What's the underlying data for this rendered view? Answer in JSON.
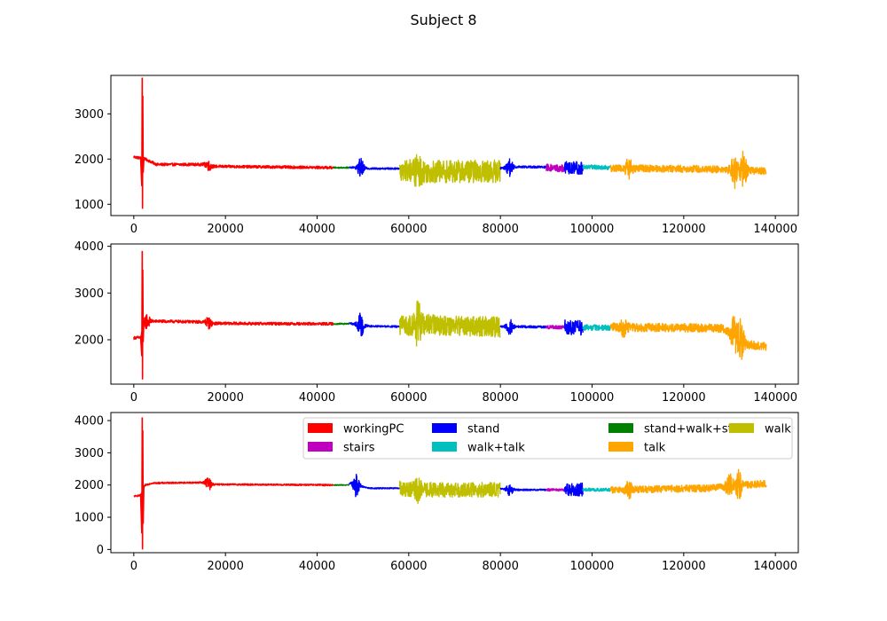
{
  "figure": {
    "title": "Subject 8"
  },
  "colors": {
    "workingPC": "#ff0000",
    "stand": "#0000ff",
    "stand+walk+stairs": "#008000",
    "walk": "#bfbf00",
    "stairs": "#bf00bf",
    "walk+talk": "#00bfbf",
    "talk": "#ffa500"
  },
  "chart_data": [
    {
      "type": "line",
      "xlim": [
        -5000,
        145000
      ],
      "ylim": [
        750,
        3850
      ],
      "xticks": [
        0,
        20000,
        40000,
        60000,
        80000,
        100000,
        120000,
        140000
      ],
      "xtick_labels": [
        "0",
        "20000",
        "40000",
        "60000",
        "80000",
        "100000",
        "120000",
        "140000"
      ],
      "yticks": [
        1000,
        2000,
        3000
      ],
      "ytick_labels": [
        "1000",
        "2000",
        "3000"
      ],
      "grid": false,
      "spike": {
        "x": 1900,
        "max": 3800,
        "min": 900
      },
      "segments": [
        {
          "label": "workingPC",
          "x": [
            0,
            43500
          ],
          "levels": [
            [
              0,
              2050
            ],
            [
              2500,
              2000
            ],
            [
              3500,
              1950
            ],
            [
              5000,
              1880
            ],
            [
              16000,
              1880
            ],
            [
              16500,
              1840
            ],
            [
              43500,
              1810
            ]
          ],
          "amp": 30,
          "bursts": [
            {
              "x": 16300,
              "amp": 90
            }
          ]
        },
        {
          "label": "stand+walk+stairs",
          "x": [
            43500,
            47000
          ],
          "levels": [
            [
              43500,
              1810
            ],
            [
              47000,
              1810
            ]
          ],
          "amp": 15,
          "bursts": []
        },
        {
          "label": "stand",
          "x": [
            47000,
            58000
          ],
          "levels": [
            [
              47000,
              1820
            ],
            [
              51500,
              1790
            ],
            [
              58000,
              1790
            ]
          ],
          "amp": 20,
          "bursts": [
            {
              "x": 49500,
              "amp": 200
            }
          ]
        },
        {
          "label": "walk",
          "x": [
            58000,
            80000
          ],
          "levels": [
            [
              58000,
              1780
            ],
            [
              62000,
              1720
            ],
            [
              80000,
              1730
            ]
          ],
          "amp": 250,
          "bursts": [
            {
              "x": 62000,
              "amp": 200
            }
          ]
        },
        {
          "label": "stand",
          "x": [
            80000,
            90000
          ],
          "levels": [
            [
              80000,
              1800
            ],
            [
              84000,
              1830
            ],
            [
              90000,
              1820
            ]
          ],
          "amp": 25,
          "bursts": [
            {
              "x": 82000,
              "amp": 180
            }
          ]
        },
        {
          "label": "stairs",
          "x": [
            90000,
            94000
          ],
          "levels": [
            [
              90000,
              1810
            ],
            [
              94000,
              1790
            ]
          ],
          "amp": 80,
          "bursts": []
        },
        {
          "label": "stand",
          "x": [
            94000,
            98000
          ],
          "levels": [
            [
              94000,
              1800
            ],
            [
              98000,
              1800
            ]
          ],
          "amp": 150,
          "bursts": []
        },
        {
          "label": "walk+talk",
          "x": [
            98000,
            104000
          ],
          "levels": [
            [
              98000,
              1830
            ],
            [
              104000,
              1810
            ]
          ],
          "amp": 50,
          "bursts": []
        },
        {
          "label": "talk",
          "x": [
            104000,
            138000
          ],
          "levels": [
            [
              104000,
              1800
            ],
            [
              125000,
              1780
            ],
            [
              138000,
              1730
            ]
          ],
          "amp": 80,
          "bursts": [
            {
              "x": 108000,
              "amp": 200
            },
            {
              "x": 131000,
              "amp": 350
            },
            {
              "x": 133000,
              "amp": 400
            }
          ]
        }
      ]
    },
    {
      "type": "line",
      "xlim": [
        -5000,
        145000
      ],
      "ylim": [
        1050,
        4050
      ],
      "xticks": [
        0,
        20000,
        40000,
        60000,
        80000,
        100000,
        120000,
        140000
      ],
      "xtick_labels": [
        "0",
        "20000",
        "40000",
        "60000",
        "80000",
        "100000",
        "120000",
        "140000"
      ],
      "yticks": [
        2000,
        3000,
        4000
      ],
      "ytick_labels": [
        "2000",
        "3000",
        "4000"
      ],
      "grid": false,
      "spike": {
        "x": 1900,
        "max": 3900,
        "min": 1150
      },
      "segments": [
        {
          "label": "workingPC",
          "x": [
            0,
            43500
          ],
          "levels": [
            [
              0,
              2040
            ],
            [
              1500,
              2050
            ],
            [
              2500,
              2400
            ],
            [
              16000,
              2380
            ],
            [
              16500,
              2350
            ],
            [
              43500,
              2340
            ]
          ],
          "amp": 30,
          "bursts": [
            {
              "x": 2800,
              "amp": 150
            },
            {
              "x": 16300,
              "amp": 100
            }
          ]
        },
        {
          "label": "stand+walk+stairs",
          "x": [
            43500,
            47000
          ],
          "levels": [
            [
              43500,
              2340
            ],
            [
              47000,
              2340
            ]
          ],
          "amp": 15,
          "bursts": []
        },
        {
          "label": "stand",
          "x": [
            47000,
            58000
          ],
          "levels": [
            [
              47000,
              2350
            ],
            [
              51500,
              2290
            ],
            [
              58000,
              2280
            ]
          ],
          "amp": 20,
          "bursts": [
            {
              "x": 49500,
              "amp": 250
            }
          ]
        },
        {
          "label": "walk",
          "x": [
            58000,
            80000
          ],
          "levels": [
            [
              58000,
              2290
            ],
            [
              62000,
              2330
            ],
            [
              80000,
              2270
            ]
          ],
          "amp": 220,
          "bursts": [
            {
              "x": 62000,
              "amp": 300
            }
          ]
        },
        {
          "label": "stand",
          "x": [
            80000,
            90000
          ],
          "levels": [
            [
              80000,
              2280
            ],
            [
              84000,
              2280
            ],
            [
              90000,
              2270
            ]
          ],
          "amp": 25,
          "bursts": [
            {
              "x": 82000,
              "amp": 170
            }
          ]
        },
        {
          "label": "stairs",
          "x": [
            90000,
            94000
          ],
          "levels": [
            [
              90000,
              2270
            ],
            [
              94000,
              2270
            ]
          ],
          "amp": 40,
          "bursts": []
        },
        {
          "label": "stand",
          "x": [
            94000,
            98000
          ],
          "levels": [
            [
              94000,
              2270
            ],
            [
              98000,
              2250
            ]
          ],
          "amp": 160,
          "bursts": []
        },
        {
          "label": "walk+talk",
          "x": [
            98000,
            104000
          ],
          "levels": [
            [
              98000,
              2260
            ],
            [
              104000,
              2260
            ]
          ],
          "amp": 60,
          "bursts": []
        },
        {
          "label": "talk",
          "x": [
            104000,
            138000
          ],
          "levels": [
            [
              104000,
              2270
            ],
            [
              128000,
              2250
            ],
            [
              132000,
              2050
            ],
            [
              134000,
              1900
            ],
            [
              138000,
              1850
            ]
          ],
          "amp": 90,
          "bursts": [
            {
              "x": 107000,
              "amp": 160
            },
            {
              "x": 131000,
              "amp": 350
            },
            {
              "x": 132500,
              "amp": 400
            }
          ]
        }
      ]
    },
    {
      "type": "line",
      "xlim": [
        -5000,
        145000
      ],
      "ylim": [
        -100,
        4250
      ],
      "xticks": [
        0,
        20000,
        40000,
        60000,
        80000,
        100000,
        120000,
        140000
      ],
      "xtick_labels": [
        "0",
        "20000",
        "40000",
        "60000",
        "80000",
        "100000",
        "120000",
        "140000"
      ],
      "yticks": [
        0,
        1000,
        2000,
        3000,
        4000
      ],
      "ytick_labels": [
        "0",
        "1000",
        "2000",
        "3000",
        "4000"
      ],
      "grid": false,
      "legend": {
        "placement": "upper right",
        "columns": 4,
        "entries": [
          "workingPC",
          "stand",
          "stand+walk+stairs",
          "walk",
          "stairs",
          "walk+talk",
          "talk"
        ]
      },
      "spike": {
        "x": 1900,
        "max": 4100,
        "min": 0
      },
      "segments": [
        {
          "label": "workingPC",
          "x": [
            0,
            43500
          ],
          "levels": [
            [
              0,
              1650
            ],
            [
              1500,
              1680
            ],
            [
              2500,
              2000
            ],
            [
              4000,
              2060
            ],
            [
              16000,
              2080
            ],
            [
              16500,
              2020
            ],
            [
              43500,
              2000
            ]
          ],
          "amp": 25,
          "bursts": [
            {
              "x": 16300,
              "amp": 180
            }
          ]
        },
        {
          "label": "stand+walk+stairs",
          "x": [
            43500,
            47000
          ],
          "levels": [
            [
              43500,
              2000
            ],
            [
              47000,
              2000
            ]
          ],
          "amp": 15,
          "bursts": []
        },
        {
          "label": "stand",
          "x": [
            47000,
            58000
          ],
          "levels": [
            [
              47000,
              2050
            ],
            [
              51500,
              1900
            ],
            [
              58000,
              1900
            ]
          ],
          "amp": 20,
          "bursts": [
            {
              "x": 48500,
              "amp": 350
            }
          ]
        },
        {
          "label": "walk",
          "x": [
            58000,
            80000
          ],
          "levels": [
            [
              58000,
              1890
            ],
            [
              62000,
              1850
            ],
            [
              80000,
              1850
            ]
          ],
          "amp": 230,
          "bursts": [
            {
              "x": 62000,
              "amp": 200
            }
          ]
        },
        {
          "label": "stand",
          "x": [
            80000,
            90000
          ],
          "levels": [
            [
              80000,
              1880
            ],
            [
              84000,
              1850
            ],
            [
              90000,
              1850
            ]
          ],
          "amp": 25,
          "bursts": [
            {
              "x": 82000,
              "amp": 180
            }
          ]
        },
        {
          "label": "stairs",
          "x": [
            90000,
            94000
          ],
          "levels": [
            [
              90000,
              1850
            ],
            [
              94000,
              1850
            ]
          ],
          "amp": 40,
          "bursts": []
        },
        {
          "label": "stand",
          "x": [
            94000,
            98000
          ],
          "levels": [
            [
              94000,
              1860
            ],
            [
              98000,
              1860
            ]
          ],
          "amp": 200,
          "bursts": []
        },
        {
          "label": "walk+talk",
          "x": [
            98000,
            104000
          ],
          "levels": [
            [
              98000,
              1860
            ],
            [
              104000,
              1850
            ]
          ],
          "amp": 50,
          "bursts": []
        },
        {
          "label": "talk",
          "x": [
            104000,
            138000
          ],
          "levels": [
            [
              104000,
              1850
            ],
            [
              125000,
              1900
            ],
            [
              138000,
              2050
            ]
          ],
          "amp": 110,
          "bursts": [
            {
              "x": 108000,
              "amp": 200
            },
            {
              "x": 130000,
              "amp": 350
            },
            {
              "x": 132000,
              "amp": 400
            }
          ]
        }
      ]
    }
  ]
}
